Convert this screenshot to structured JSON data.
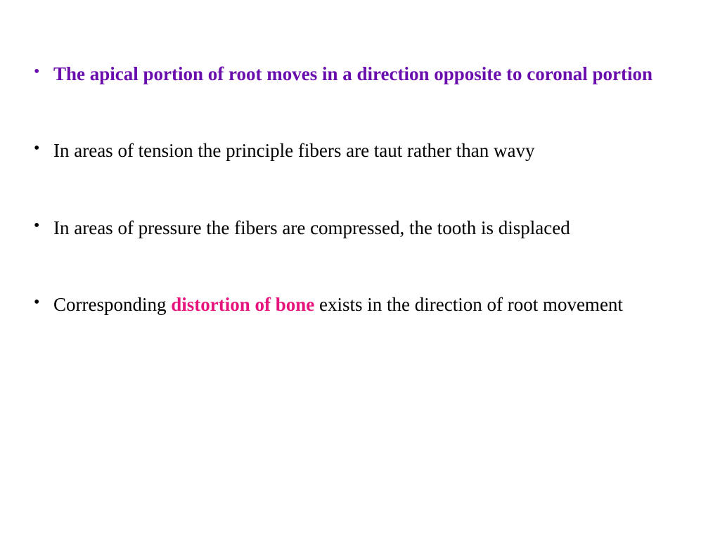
{
  "colors": {
    "purple": "#6a0dad",
    "pink": "#e5137b",
    "black": "#000000",
    "background": "#ffffff"
  },
  "typography": {
    "font_family": "Times New Roman",
    "body_fontsize_pt": 20,
    "line_height": 1.9,
    "bold_spans": true
  },
  "bullets": [
    {
      "spans": [
        {
          "text": "The apical portion of root moves in a direction opposite to coronal portion",
          "style": "purple"
        }
      ]
    },
    {
      "spans": [
        {
          "text": "In areas of tension the principle fibers are taut rather than wavy",
          "style": "black"
        }
      ]
    },
    {
      "spans": [
        {
          "text": "In areas of pressure the fibers are compressed, the tooth is displaced",
          "style": "black"
        }
      ]
    },
    {
      "spans": [
        {
          "text": "Corresponding ",
          "style": "black"
        },
        {
          "text": "distortion of bone",
          "style": "pink"
        },
        {
          "text": " exists in the direction of root movement",
          "style": "black"
        }
      ]
    }
  ]
}
